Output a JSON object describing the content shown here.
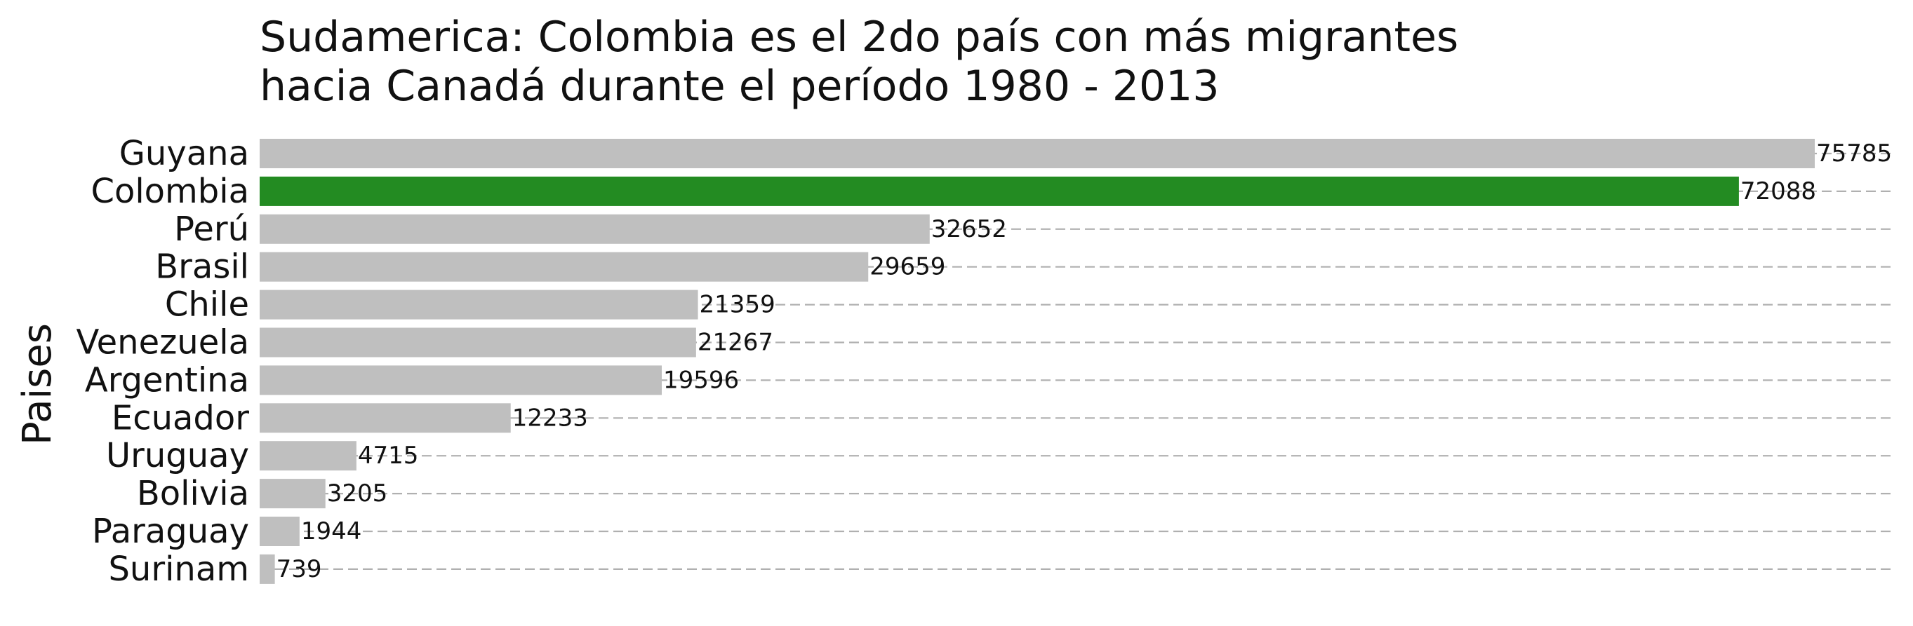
{
  "chart_data": {
    "type": "bar",
    "orientation": "horizontal",
    "title": "Sudamerica: Colombia es el 2do país con más migrantes hacia Canadá durante el período 1980 - 2013",
    "title_lines": [
      "Sudamerica: Colombia es el 2do país con más migrantes",
      "hacia Canadá durante el período 1980 - 2013"
    ],
    "xlabel": "",
    "ylabel": "Paises",
    "categories": [
      "Guyana",
      "Colombia",
      "Perú",
      "Brasil",
      "Chile",
      "Venezuela",
      "Argentina",
      "Ecuador",
      "Uruguay",
      "Bolivia",
      "Paraguay",
      "Surinam"
    ],
    "values": [
      75785,
      72088,
      32652,
      29659,
      21359,
      21267,
      19596,
      12233,
      4715,
      3205,
      1944,
      739
    ],
    "value_labels": [
      "75785",
      "72088",
      "32652",
      "29659",
      "21359",
      "21267",
      "19596",
      "12233",
      "4715",
      "3205",
      "1944",
      "739"
    ],
    "highlight": "Colombia",
    "xlim": [
      0,
      75785
    ],
    "grid": "horizontal dashed",
    "legend": "none",
    "colors": {
      "default_bar": "#bfbfbf",
      "highlight_bar": "#238b22",
      "gridline": "#b0b0b0",
      "text": "#111111"
    }
  }
}
